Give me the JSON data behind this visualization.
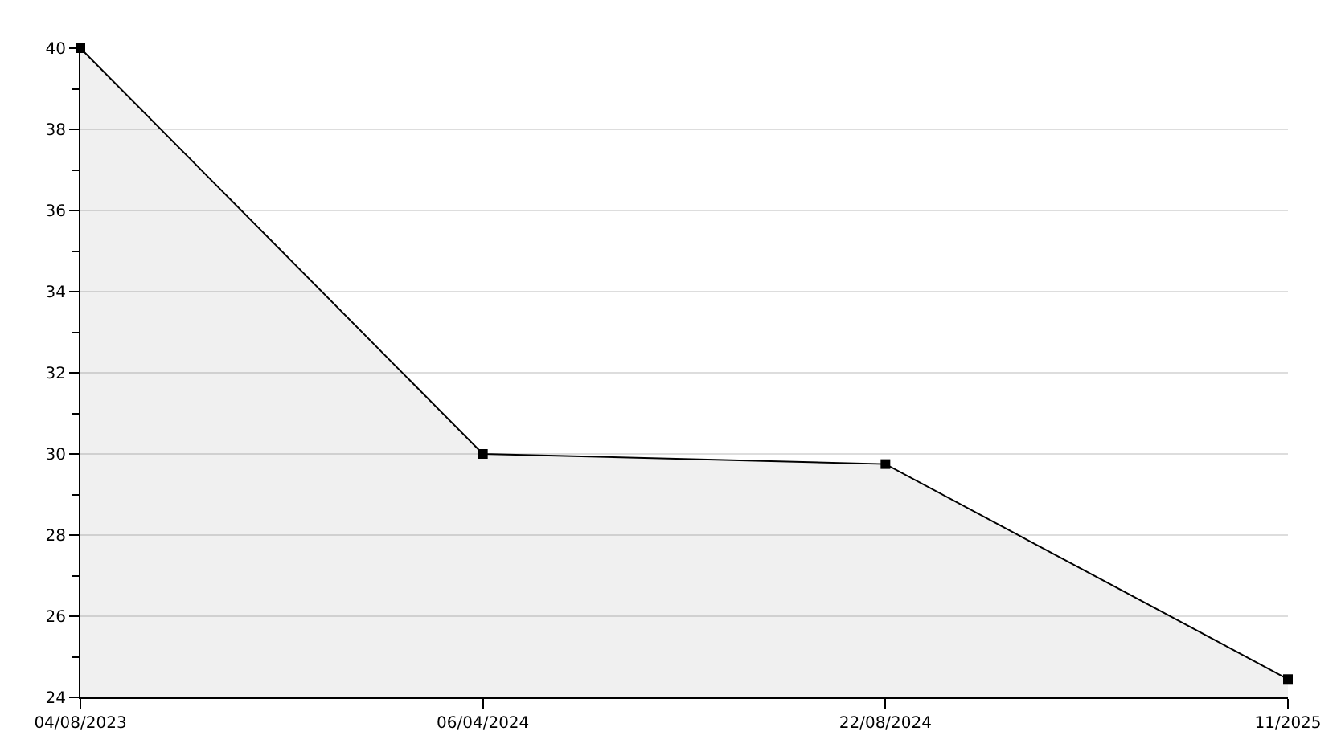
{
  "chart_data": {
    "type": "area",
    "categories": [
      "04/08/2023",
      "06/04/2024",
      "22/08/2024",
      "11/2025"
    ],
    "series": [
      {
        "color": "#000000",
        "values": [
          40,
          30,
          29.75,
          24.45
        ]
      }
    ],
    "ylim": [
      24,
      40
    ],
    "yticks": [
      24,
      {
        "value": 25,
        "label": null
      },
      26,
      {
        "value": 27,
        "label": null
      },
      28,
      {
        "value": 29,
        "label": null
      },
      30,
      {
        "value": 31,
        "label": null
      },
      32,
      {
        "value": 33,
        "label": null
      },
      34,
      {
        "value": 35,
        "label": null
      },
      36,
      {
        "value": 37,
        "label": null
      },
      38,
      {
        "value": 39,
        "label": null
      },
      40
    ],
    "grid": "y",
    "marker": "square",
    "line_style": "solid",
    "legend": false
  }
}
